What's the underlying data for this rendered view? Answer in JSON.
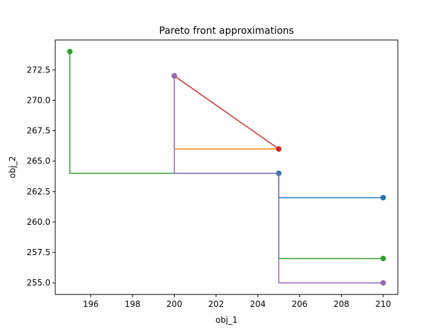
{
  "chart_data": {
    "type": "line",
    "title": "Pareto front approximations",
    "xlabel": "obj_1",
    "ylabel": "obj_2",
    "xlim": [
      194.3,
      210.7
    ],
    "ylim": [
      254.05,
      274.95
    ],
    "grid": false,
    "legend": "none",
    "xticks": [
      196,
      198,
      200,
      202,
      204,
      206,
      208,
      210
    ],
    "xtick_labels": [
      "196",
      "198",
      "200",
      "202",
      "204",
      "206",
      "208",
      "210"
    ],
    "yticks": [
      255.0,
      257.5,
      260.0,
      262.5,
      265.0,
      267.5,
      270.0,
      272.5
    ],
    "ytick_labels": [
      "255.0",
      "257.5",
      "260.0",
      "262.5",
      "265.0",
      "267.5",
      "270.0",
      "272.5"
    ],
    "series": [
      {
        "color": "#1f77b4",
        "points": [
          [
            205,
            264
          ],
          [
            205,
            262
          ],
          [
            210,
            262
          ]
        ]
      },
      {
        "color": "#ff7f0e",
        "points": [
          [
            200,
            272
          ],
          [
            200,
            266
          ],
          [
            205,
            266
          ]
        ]
      },
      {
        "color": "#2ca02c",
        "points": [
          [
            195,
            274
          ],
          [
            195,
            264
          ],
          [
            205,
            264
          ],
          [
            205,
            257
          ],
          [
            210,
            257
          ]
        ]
      },
      {
        "color": "#d62728",
        "points": [
          [
            200,
            272
          ],
          [
            205,
            266
          ]
        ]
      },
      {
        "color": "#9467bd",
        "points": [
          [
            200,
            272
          ],
          [
            200,
            264
          ],
          [
            205,
            264
          ],
          [
            205,
            255
          ],
          [
            210,
            255
          ]
        ]
      }
    ]
  }
}
